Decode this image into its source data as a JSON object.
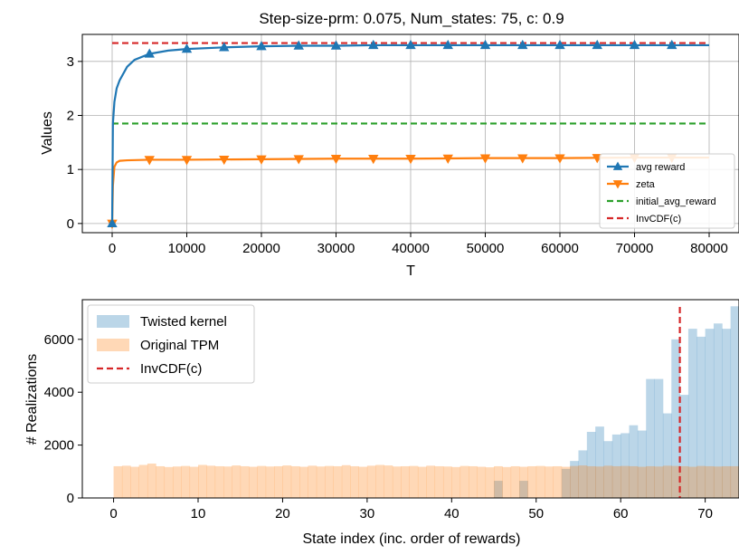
{
  "chart_data": [
    {
      "type": "line",
      "title": "Step-size-prm: 0.075, Num_states: 75, c: 0.9",
      "xlabel": "T",
      "ylabel": "Values",
      "xlim": [
        -4000,
        84000
      ],
      "ylim": [
        -0.17,
        3.5
      ],
      "xticks": [
        0,
        10000,
        20000,
        30000,
        40000,
        50000,
        60000,
        70000,
        80000
      ],
      "xtick_labels": [
        "0",
        "10000",
        "20000",
        "30000",
        "40000",
        "50000",
        "60000",
        "70000",
        "80000"
      ],
      "yticks": [
        0,
        1,
        2,
        3
      ],
      "ytick_labels": [
        "0",
        "1",
        "2",
        "3"
      ],
      "grid": true,
      "legend": "lower-right",
      "series": [
        {
          "name": "avg reward",
          "color": "#1f77b4",
          "marker": "triangle-up",
          "x": [
            0,
            100,
            300,
            600,
            1000,
            2000,
            3000,
            5000,
            7500,
            10000,
            15000,
            20000,
            25000,
            30000,
            35000,
            40000,
            45000,
            50000,
            55000,
            60000,
            65000,
            70000,
            75000,
            80000
          ],
          "y": [
            0,
            1.85,
            2.25,
            2.5,
            2.65,
            2.9,
            3.03,
            3.14,
            3.2,
            3.23,
            3.26,
            3.28,
            3.29,
            3.29,
            3.3,
            3.3,
            3.3,
            3.3,
            3.3,
            3.3,
            3.3,
            3.3,
            3.3,
            3.3
          ],
          "marker_x": [
            0,
            5000,
            10000,
            15000,
            20000,
            25000,
            30000,
            35000,
            40000,
            45000,
            50000,
            55000,
            60000,
            65000,
            70000,
            75000
          ]
        },
        {
          "name": "zeta",
          "color": "#ff7f0e",
          "marker": "triangle-down",
          "x": [
            0,
            100,
            300,
            600,
            1000,
            2000,
            5000,
            10000,
            20000,
            30000,
            40000,
            50000,
            60000,
            70000,
            80000
          ],
          "y": [
            0,
            0.7,
            1.05,
            1.13,
            1.16,
            1.17,
            1.18,
            1.18,
            1.19,
            1.2,
            1.2,
            1.21,
            1.21,
            1.22,
            1.22
          ],
          "marker_x": [
            0,
            5000,
            10000,
            15000,
            20000,
            25000,
            30000,
            35000,
            40000,
            45000,
            50000,
            55000,
            60000,
            65000,
            70000,
            75000
          ]
        },
        {
          "name": "initial_avg_reward",
          "color": "#2ca02c",
          "style": "dashed",
          "x": [
            0,
            80000
          ],
          "y": [
            1.85,
            1.85
          ]
        },
        {
          "name": "InvCDF(c)",
          "color": "#d62728",
          "style": "dashed",
          "x": [
            0,
            80000
          ],
          "y": [
            3.34,
            3.34
          ]
        }
      ]
    },
    {
      "type": "bar",
      "subtype": "histogram",
      "xlabel": "State index (inc. order of rewards)",
      "ylabel": "# Realizations",
      "xlim": [
        -3.7,
        74
      ],
      "ylim": [
        0,
        7500
      ],
      "xticks": [
        0,
        10,
        20,
        30,
        40,
        50,
        60,
        70
      ],
      "xtick_labels": [
        "0",
        "10",
        "20",
        "30",
        "40",
        "50",
        "60",
        "70"
      ],
      "yticks": [
        0,
        2000,
        4000,
        6000
      ],
      "ytick_labels": [
        "0",
        "2000",
        "4000",
        "6000"
      ],
      "grid": false,
      "legend": "top-left",
      "bins": 74,
      "bin_start": 0,
      "bin_width": 1,
      "series": [
        {
          "name": "Twisted kernel",
          "color": "#1f77b4",
          "alpha": 0.3,
          "values": [
            0,
            0,
            0,
            0,
            0,
            0,
            0,
            0,
            0,
            0,
            0,
            0,
            0,
            0,
            0,
            0,
            0,
            0,
            0,
            0,
            0,
            0,
            0,
            0,
            0,
            0,
            0,
            0,
            0,
            0,
            0,
            0,
            0,
            0,
            0,
            0,
            0,
            0,
            0,
            0,
            0,
            0,
            0,
            0,
            0,
            650,
            0,
            0,
            650,
            0,
            0,
            0,
            0,
            1100,
            1400,
            1800,
            2500,
            2700,
            2150,
            2400,
            2450,
            2750,
            2550,
            4500,
            4500,
            3200,
            6000,
            3900,
            6400,
            6100,
            6400,
            6600,
            6400,
            7250
          ]
        },
        {
          "name": "Original TPM",
          "color": "#ff7f0e",
          "alpha": 0.3,
          "values": [
            1200,
            1220,
            1180,
            1250,
            1300,
            1200,
            1170,
            1190,
            1210,
            1180,
            1250,
            1220,
            1200,
            1190,
            1230,
            1200,
            1180,
            1210,
            1190,
            1200,
            1230,
            1200,
            1180,
            1220,
            1190,
            1210,
            1200,
            1240,
            1200,
            1180,
            1220,
            1250,
            1230,
            1190,
            1200,
            1210,
            1180,
            1220,
            1200,
            1190,
            1170,
            1210,
            1200,
            1180,
            1160,
            1200,
            1170,
            1200,
            1180,
            1200,
            1210,
            1190,
            1200,
            1180,
            1210,
            1230,
            1200,
            1190,
            1220,
            1200,
            1210,
            1200,
            1180,
            1200,
            1190,
            1220,
            1210,
            1200,
            1180,
            1210,
            1200,
            1190,
            1200,
            1200
          ]
        },
        {
          "name": "InvCDF(c)",
          "color": "#d62728",
          "style": "dashed",
          "x": 67
        }
      ]
    }
  ]
}
